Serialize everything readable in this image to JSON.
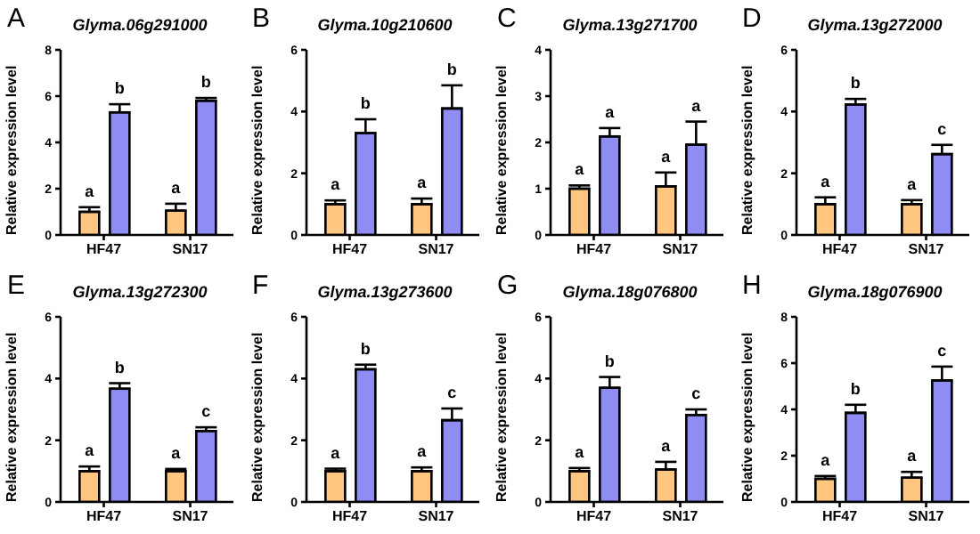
{
  "chart_data": [
    {
      "type": "bar",
      "title": "Glyma.06g291000",
      "annotations": [
        "A"
      ],
      "ylabel": "Relative expression level",
      "categories": [
        "HF47",
        "SN17"
      ],
      "ylim": [
        0,
        8
      ],
      "yticks": [
        0,
        2,
        4,
        6,
        8
      ],
      "series": [
        {
          "color": "#ffc680",
          "values": [
            1.0,
            1.05
          ],
          "errors": [
            0.2,
            0.3
          ],
          "value_labels": [
            "a",
            "a"
          ]
        },
        {
          "color": "#8f8cf4",
          "values": [
            5.3,
            5.8
          ],
          "errors": [
            0.35,
            0.12
          ],
          "value_labels": [
            "b",
            "b"
          ]
        }
      ]
    },
    {
      "type": "bar",
      "title": "Glyma.10g210600",
      "annotations": [
        "B"
      ],
      "ylabel": "Relative expression level",
      "categories": [
        "HF47",
        "SN17"
      ],
      "ylim": [
        0,
        6
      ],
      "yticks": [
        0,
        2,
        4,
        6
      ],
      "series": [
        {
          "color": "#ffc680",
          "values": [
            1.0,
            1.0
          ],
          "errors": [
            0.12,
            0.18
          ],
          "value_labels": [
            "a",
            "a"
          ]
        },
        {
          "color": "#8f8cf4",
          "values": [
            3.3,
            4.1
          ],
          "errors": [
            0.45,
            0.75
          ],
          "value_labels": [
            "b",
            "b"
          ]
        }
      ]
    },
    {
      "type": "bar",
      "title": "Glyma.13g271700",
      "annotations": [
        "C"
      ],
      "ylabel": "Relative expression level",
      "categories": [
        "HF47",
        "SN17"
      ],
      "ylim": [
        0,
        4
      ],
      "yticks": [
        0,
        1,
        2,
        3,
        4
      ],
      "series": [
        {
          "color": "#ffc680",
          "values": [
            1.0,
            1.05
          ],
          "errors": [
            0.07,
            0.3
          ],
          "value_labels": [
            "a",
            "a"
          ]
        },
        {
          "color": "#8f8cf4",
          "values": [
            2.13,
            1.95
          ],
          "errors": [
            0.18,
            0.5
          ],
          "value_labels": [
            "a",
            "a"
          ]
        }
      ]
    },
    {
      "type": "bar",
      "title": "Glyma.13g272000",
      "annotations": [
        "D"
      ],
      "ylabel": "Relative expression level",
      "categories": [
        "HF47",
        "SN17"
      ],
      "ylim": [
        0,
        6
      ],
      "yticks": [
        0,
        2,
        4,
        6
      ],
      "series": [
        {
          "color": "#ffc680",
          "values": [
            1.0,
            1.0
          ],
          "errors": [
            0.22,
            0.13
          ],
          "value_labels": [
            "a",
            "a"
          ]
        },
        {
          "color": "#8f8cf4",
          "values": [
            4.23,
            2.62
          ],
          "errors": [
            0.18,
            0.3
          ],
          "value_labels": [
            "b",
            "c"
          ]
        }
      ]
    },
    {
      "type": "bar",
      "title": "Glyma.13g272300",
      "annotations": [
        "E"
      ],
      "ylabel": "Relative expression level",
      "categories": [
        "HF47",
        "SN17"
      ],
      "ylim": [
        0,
        6
      ],
      "yticks": [
        0,
        2,
        4,
        6
      ],
      "series": [
        {
          "color": "#ffc680",
          "values": [
            1.0,
            1.0
          ],
          "errors": [
            0.15,
            0.07
          ],
          "value_labels": [
            "a",
            "a"
          ]
        },
        {
          "color": "#8f8cf4",
          "values": [
            3.67,
            2.3
          ],
          "errors": [
            0.18,
            0.12
          ],
          "value_labels": [
            "b",
            "c"
          ]
        }
      ]
    },
    {
      "type": "bar",
      "title": "Glyma.13g273600",
      "annotations": [
        "F"
      ],
      "ylabel": "Relative expression level",
      "categories": [
        "HF47",
        "SN17"
      ],
      "ylim": [
        0,
        6
      ],
      "yticks": [
        0,
        2,
        4,
        6
      ],
      "series": [
        {
          "color": "#ffc680",
          "values": [
            1.0,
            1.0
          ],
          "errors": [
            0.08,
            0.12
          ],
          "value_labels": [
            "a",
            "a"
          ]
        },
        {
          "color": "#8f8cf4",
          "values": [
            4.3,
            2.65
          ],
          "errors": [
            0.15,
            0.38
          ],
          "value_labels": [
            "b",
            "c"
          ]
        }
      ]
    },
    {
      "type": "bar",
      "title": "Glyma.18g076800",
      "annotations": [
        "G"
      ],
      "ylabel": "Relative expression level",
      "categories": [
        "HF47",
        "SN17"
      ],
      "ylim": [
        0,
        6
      ],
      "yticks": [
        0,
        2,
        4,
        6
      ],
      "series": [
        {
          "color": "#ffc680",
          "values": [
            1.0,
            1.05
          ],
          "errors": [
            0.1,
            0.25
          ],
          "value_labels": [
            "a",
            "a"
          ]
        },
        {
          "color": "#8f8cf4",
          "values": [
            3.7,
            2.82
          ],
          "errors": [
            0.35,
            0.18
          ],
          "value_labels": [
            "b",
            "c"
          ]
        }
      ]
    },
    {
      "type": "bar",
      "title": "Glyma.18g076900",
      "annotations": [
        "H"
      ],
      "ylabel": "Relative expression level",
      "categories": [
        "HF47",
        "SN17"
      ],
      "ylim": [
        0,
        8
      ],
      "yticks": [
        0,
        2,
        4,
        6,
        8
      ],
      "series": [
        {
          "color": "#ffc680",
          "values": [
            1.0,
            1.05
          ],
          "errors": [
            0.12,
            0.25
          ],
          "value_labels": [
            "a",
            "a"
          ]
        },
        {
          "color": "#8f8cf4",
          "values": [
            3.85,
            5.25
          ],
          "errors": [
            0.35,
            0.6
          ],
          "value_labels": [
            "b",
            "c"
          ]
        }
      ]
    }
  ]
}
